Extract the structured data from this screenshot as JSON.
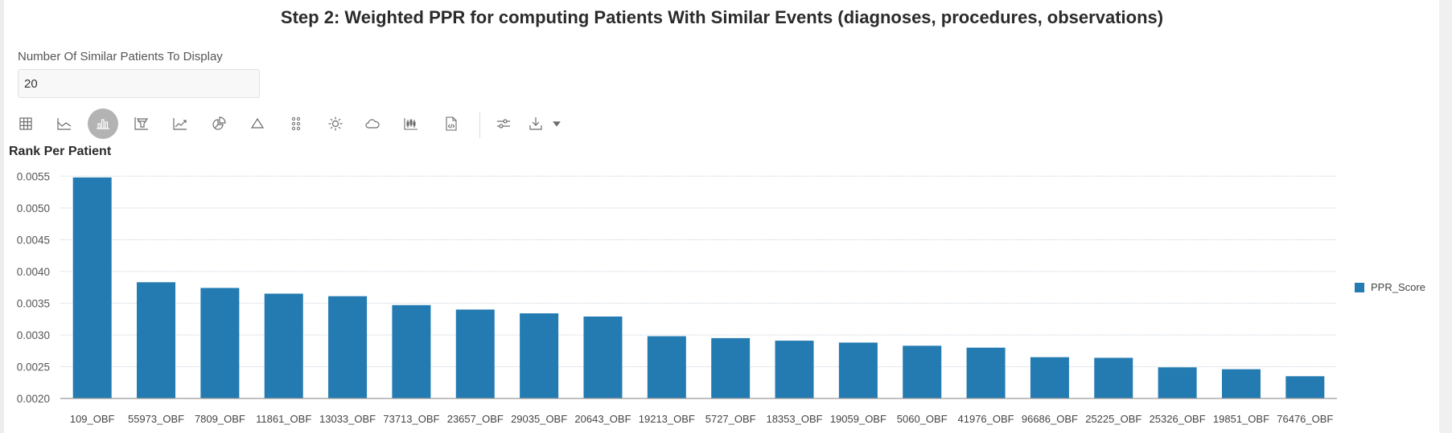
{
  "page": {
    "title": "Step 2: Weighted PPR for computing Patients With Similar Events (diagnoses, procedures, observations)"
  },
  "filter": {
    "label": "Number Of Similar Patients To Display",
    "value": "20"
  },
  "toolbar": {
    "buttons": [
      {
        "icon": "table-icon",
        "active": false
      },
      {
        "icon": "line-chart-icon",
        "active": false
      },
      {
        "icon": "bar-chart-icon",
        "active": true
      },
      {
        "icon": "funnel-chart-icon",
        "active": false
      },
      {
        "icon": "trend-chart-icon",
        "active": false
      },
      {
        "icon": "pie-chart-icon",
        "active": false
      },
      {
        "icon": "triangle-icon",
        "active": false
      },
      {
        "icon": "dots-grid-icon",
        "active": false
      },
      {
        "icon": "sun-icon",
        "active": false
      },
      {
        "icon": "cloud-icon",
        "active": false
      },
      {
        "icon": "candlestick-icon",
        "active": false
      },
      {
        "icon": "document-code-icon",
        "active": false
      },
      {
        "icon": "sliders-icon",
        "active": false
      },
      {
        "icon": "download-icon",
        "active": false
      },
      {
        "icon": "dropdown-arrow-icon",
        "active": false
      }
    ]
  },
  "colors": {
    "bar": "#237bb1",
    "grid": "#d5dde6",
    "axis": "#9a9a9a",
    "active_button": "#b3b3b3"
  },
  "chart_data": {
    "type": "bar",
    "title": "Rank Per Patient",
    "xlabel": "",
    "ylabel": "",
    "ylim": [
      0.002,
      0.0055
    ],
    "yticks": [
      "0.0055",
      "0.0050",
      "0.0045",
      "0.0040",
      "0.0035",
      "0.0030",
      "0.0025",
      "0.0020"
    ],
    "ytick_values": [
      0.0055,
      0.005,
      0.0045,
      0.004,
      0.0035,
      0.003,
      0.0025,
      0.002
    ],
    "grid": true,
    "legend_position": "right",
    "categories": [
      "109_OBF",
      "55973_OBF",
      "7809_OBF",
      "11861_OBF",
      "13033_OBF",
      "73713_OBF",
      "23657_OBF",
      "29035_OBF",
      "20643_OBF",
      "19213_OBF",
      "5727_OBF",
      "18353_OBF",
      "19059_OBF",
      "5060_OBF",
      "41976_OBF",
      "96686_OBF",
      "25225_OBF",
      "25326_OBF",
      "19851_OBF",
      "76476_OBF"
    ],
    "series": [
      {
        "name": "PPR_Score",
        "values": [
          0.00548,
          0.00383,
          0.00374,
          0.00365,
          0.00361,
          0.00347,
          0.0034,
          0.00334,
          0.00329,
          0.00298,
          0.00295,
          0.00291,
          0.00288,
          0.00283,
          0.0028,
          0.00265,
          0.00264,
          0.00249,
          0.00246,
          0.00235
        ]
      }
    ]
  }
}
